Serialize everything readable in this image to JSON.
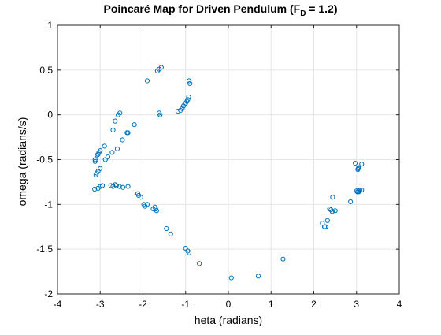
{
  "chart_data": {
    "type": "scatter",
    "title": {
      "prefix": "Poincaré Map for Driven Pendulum (F",
      "subscript": "D",
      "suffix": " = 1.2)"
    },
    "xlabel": "heta (radians)",
    "ylabel": "omega (radians/s)",
    "xlim": [
      -4,
      4
    ],
    "ylim": [
      -2,
      1
    ],
    "xticks": [
      -4,
      -3,
      -2,
      -1,
      0,
      1,
      2,
      3,
      4
    ],
    "yticks": [
      1,
      0.5,
      0,
      -0.5,
      -1,
      -1.5,
      -2
    ],
    "grid": true,
    "marker": "open-circle",
    "marker_color": "#0072BD",
    "series": [
      {
        "x": [
          -1.62,
          -1.57,
          -1.66,
          -1.9,
          -0.92,
          -0.9,
          -0.93,
          -0.95,
          -0.97,
          -1.0,
          -1.02,
          -1.05,
          -1.08,
          -1.12,
          -1.18,
          -1.6,
          -1.62,
          -2.65,
          -2.58,
          -2.54,
          -2.7,
          -2.37,
          -2.35,
          -2.2,
          -2.48,
          -2.6,
          -2.72,
          -2.82,
          -2.88,
          -2.9,
          -3.0,
          -3.03,
          -3.05,
          -3.07,
          -3.12,
          -3.12,
          -3.0,
          -3.05,
          -3.1,
          -3.08,
          -3.13,
          -3.05,
          -3.0,
          -2.95,
          -2.75,
          -2.7,
          -2.65,
          -2.62,
          -2.55,
          -2.47,
          -2.35,
          -2.12,
          -2.1,
          -2.05,
          -1.98,
          -1.95,
          -1.9,
          -1.76,
          -1.72,
          -1.68,
          -1.7,
          -1.45,
          -1.35,
          -1.0,
          -0.95,
          -0.92,
          -0.68,
          0.07,
          0.7,
          1.28,
          2.2,
          2.25,
          2.28,
          2.32,
          2.37,
          2.4,
          2.43,
          2.5,
          2.44,
          2.86,
          3.0,
          3.02,
          3.05,
          3.05,
          3.08,
          3.12,
          2.97,
          3.04,
          3.03,
          3.05,
          3.12
        ],
        "y": [
          0.51,
          0.53,
          0.49,
          0.38,
          0.38,
          0.35,
          0.2,
          0.17,
          0.15,
          0.13,
          0.12,
          0.1,
          0.07,
          0.05,
          0.04,
          0.0,
          0.02,
          -0.07,
          0.0,
          0.02,
          -0.17,
          -0.2,
          -0.2,
          -0.11,
          -0.28,
          -0.38,
          -0.42,
          -0.47,
          -0.5,
          -0.35,
          -0.4,
          -0.42,
          -0.44,
          -0.45,
          -0.5,
          -0.52,
          -0.6,
          -0.63,
          -0.67,
          -0.65,
          -0.83,
          -0.82,
          -0.8,
          -0.79,
          -0.79,
          -0.8,
          -0.78,
          -0.79,
          -0.8,
          -0.81,
          -0.8,
          -0.88,
          -0.9,
          -0.92,
          -1.0,
          -1.02,
          -1.0,
          -1.05,
          -1.03,
          -1.07,
          -1.05,
          -1.27,
          -1.33,
          -1.49,
          -1.52,
          -1.54,
          -1.66,
          -1.82,
          -1.8,
          -1.61,
          -1.21,
          -1.25,
          -1.25,
          -1.18,
          -1.05,
          -1.06,
          -1.08,
          -1.07,
          -0.92,
          -0.97,
          -0.85,
          -0.86,
          -0.86,
          -0.85,
          -0.84,
          -0.84,
          -0.54,
          -0.6,
          -0.61,
          -0.59,
          -0.55
        ]
      }
    ]
  }
}
